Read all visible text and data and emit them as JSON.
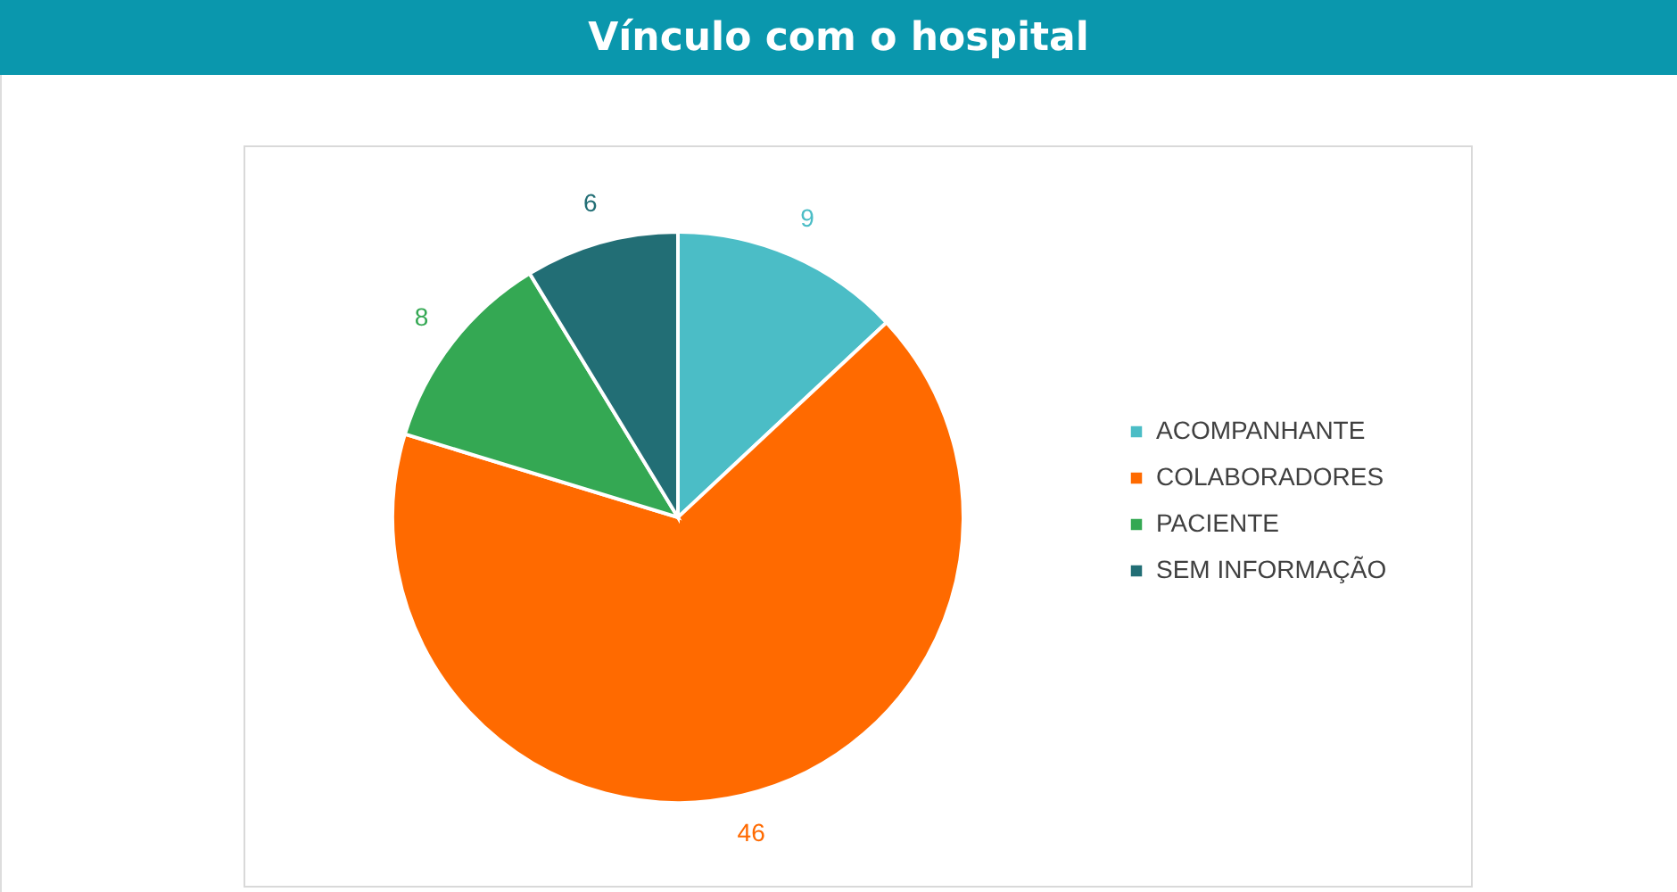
{
  "chart_data": {
    "type": "pie",
    "title": "Vínculo com o hospital",
    "categories": [
      "ACOMPANHANTE",
      "COLABORADORES",
      "PACIENTE",
      "SEM INFORMAÇÃO"
    ],
    "values": [
      9,
      46,
      8,
      6
    ],
    "colors": [
      "#4bbdc6",
      "#ff6a00",
      "#34a853",
      "#226e75"
    ],
    "data_labels": true,
    "legend": "right"
  }
}
